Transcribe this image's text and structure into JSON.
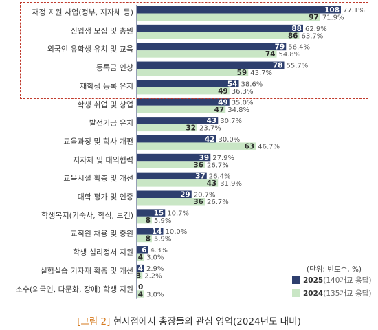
{
  "chart_data": {
    "type": "bar",
    "orientation": "horizontal",
    "categories": [
      "재정 지원 사업(정부, 지자체 등)",
      "신입생 모집 및 충원",
      "외국인 유학생 유치 및 교육",
      "등록금 인상",
      "재학생 등록 유지",
      "학생 취업 및 창업",
      "발전기금 유치",
      "교육과정 및 학사 개편",
      "지자체 및 대외협력",
      "교육시설 확충 및 개선",
      "대학 평가 및 인증",
      "학생복지(기숙사, 학식, 보건)",
      "교직원 채용 및 충원",
      "학생 심리정서 지원",
      "실험실습 기자재 확충 및 개선",
      "소수(외국인, 다문화, 장애) 학생 지원"
    ],
    "series": [
      {
        "name": "2025",
        "color": "#2e3f6e",
        "values": [
          108,
          88,
          79,
          78,
          54,
          49,
          43,
          42,
          39,
          37,
          29,
          15,
          14,
          6,
          4,
          0
        ],
        "percents": [
          "77.1%",
          "62.9%",
          "56.4%",
          "55.7%",
          "38.6%",
          "35.0%",
          "30.7%",
          "30.0%",
          "27.9%",
          "26.4%",
          "20.7%",
          "10.7%",
          "10.0%",
          "4.3%",
          "2.9%",
          ""
        ]
      },
      {
        "name": "2024",
        "color": "#c9e6c5",
        "values": [
          97,
          86,
          74,
          59,
          49,
          47,
          32,
          63,
          36,
          43,
          36,
          8,
          8,
          4,
          3,
          4
        ],
        "percents": [
          "71.9%",
          "63.7%",
          "54.8%",
          "43.7%",
          "36.3%",
          "34.8%",
          "23.7%",
          "46.7%",
          "26.7%",
          "31.9%",
          "26.7%",
          "5.9%",
          "5.9%",
          "3.0%",
          "2.2%",
          "3.0%"
        ]
      }
    ],
    "highlighted_categories": 5,
    "unit_note": "(단위: 빈도수, %)",
    "legend": [
      {
        "year": "2025",
        "sub": "(140개교 응답)",
        "color": "#2e3f6e"
      },
      {
        "year": "2024",
        "sub": "(135개교 응답)",
        "color": "#c9e6c5"
      }
    ],
    "legend_position": "bottom-right",
    "caption_tag": "[그림 2]",
    "caption_text": " 현시점에서 총장들의 관심 영역(2024년도 대비)"
  }
}
